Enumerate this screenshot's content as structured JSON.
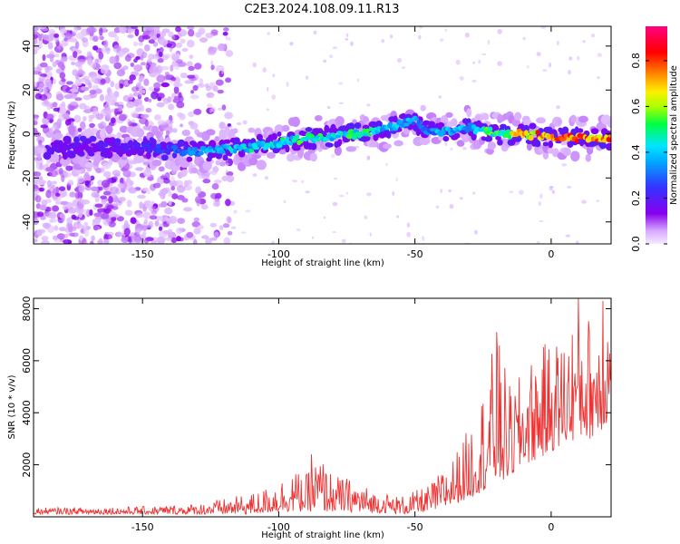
{
  "title": "C2E3.2024.108.09.11.R13",
  "chart_data": [
    {
      "type": "heatmap",
      "title": "C2E3.2024.108.09.11.R13",
      "xlabel": "Height of straight line (km)",
      "ylabel": "Frequency (Hz)",
      "xlim": [
        -190,
        22
      ],
      "ylim": [
        -50,
        49
      ],
      "x_ticks": [
        -150,
        -100,
        -50,
        0
      ],
      "y_ticks": [
        -40,
        -20,
        0,
        20,
        40
      ],
      "colorbar": {
        "label": "Normalized spectral amplitude",
        "range": [
          0,
          0.95
        ],
        "ticks": [
          0.0,
          0.2,
          0.4,
          0.6,
          0.8
        ],
        "colormap": [
          "#f5eaff",
          "#8800ee",
          "#3333ff",
          "#00e5ff",
          "#00ff44",
          "#aaff00",
          "#ffee00",
          "#ff8800",
          "#ff0000",
          "#ff0080"
        ]
      },
      "ridge": {
        "x": [
          -170,
          -150,
          -130,
          -120,
          -110,
          -100,
          -90,
          -80,
          -70,
          -60,
          -50,
          -45,
          -40,
          -30,
          -20,
          -10,
          0,
          10,
          20
        ],
        "y": [
          -6,
          -6,
          -8,
          -7,
          -6,
          -4,
          -2,
          -1,
          0,
          3,
          6,
          1,
          1,
          3,
          0,
          0,
          -1,
          -2,
          -2
        ],
        "amplitude": [
          0.2,
          0.22,
          0.35,
          0.45,
          0.5,
          0.5,
          0.55,
          0.5,
          0.55,
          0.45,
          0.4,
          0.35,
          0.45,
          0.45,
          0.6,
          0.75,
          0.85,
          0.9,
          0.9
        ]
      },
      "noise_region_x": [
        -190,
        -125
      ]
    },
    {
      "type": "line",
      "xlabel": "Height of straight line (km)",
      "ylabel": "SNR (10 * v/v)",
      "xlim": [
        -190,
        22
      ],
      "ylim": [
        0,
        8400
      ],
      "x_ticks": [
        -150,
        -100,
        -50,
        0
      ],
      "y_ticks": [
        2000,
        4000,
        6000,
        8000
      ],
      "color": "#ee3333",
      "envelope": {
        "x": [
          -190,
          -150,
          -130,
          -120,
          -110,
          -105,
          -100,
          -95,
          -90,
          -85,
          -80,
          -75,
          -70,
          -65,
          -60,
          -55,
          -50,
          -45,
          -40,
          -35,
          -30,
          -25,
          -20,
          -15,
          -10,
          -5,
          0,
          5,
          10,
          15,
          20
        ],
        "low": [
          100,
          100,
          100,
          100,
          100,
          150,
          200,
          200,
          200,
          200,
          200,
          200,
          150,
          150,
          150,
          100,
          150,
          200,
          300,
          500,
          700,
          1000,
          1200,
          1500,
          2000,
          2200,
          2500,
          2800,
          3000,
          3000,
          3500
        ],
        "high": [
          350,
          400,
          500,
          700,
          900,
          1100,
          1400,
          1800,
          1600,
          2400,
          1600,
          1500,
          1300,
          1000,
          900,
          800,
          1000,
          1200,
          1800,
          2500,
          3500,
          5000,
          7100,
          5000,
          5600,
          6500,
          6800,
          7000,
          8300,
          7700,
          8300
        ]
      },
      "peaks": {
        "x": [
          -88,
          -20,
          10,
          19
        ],
        "y": [
          2400,
          7100,
          8400,
          8300
        ]
      }
    }
  ]
}
